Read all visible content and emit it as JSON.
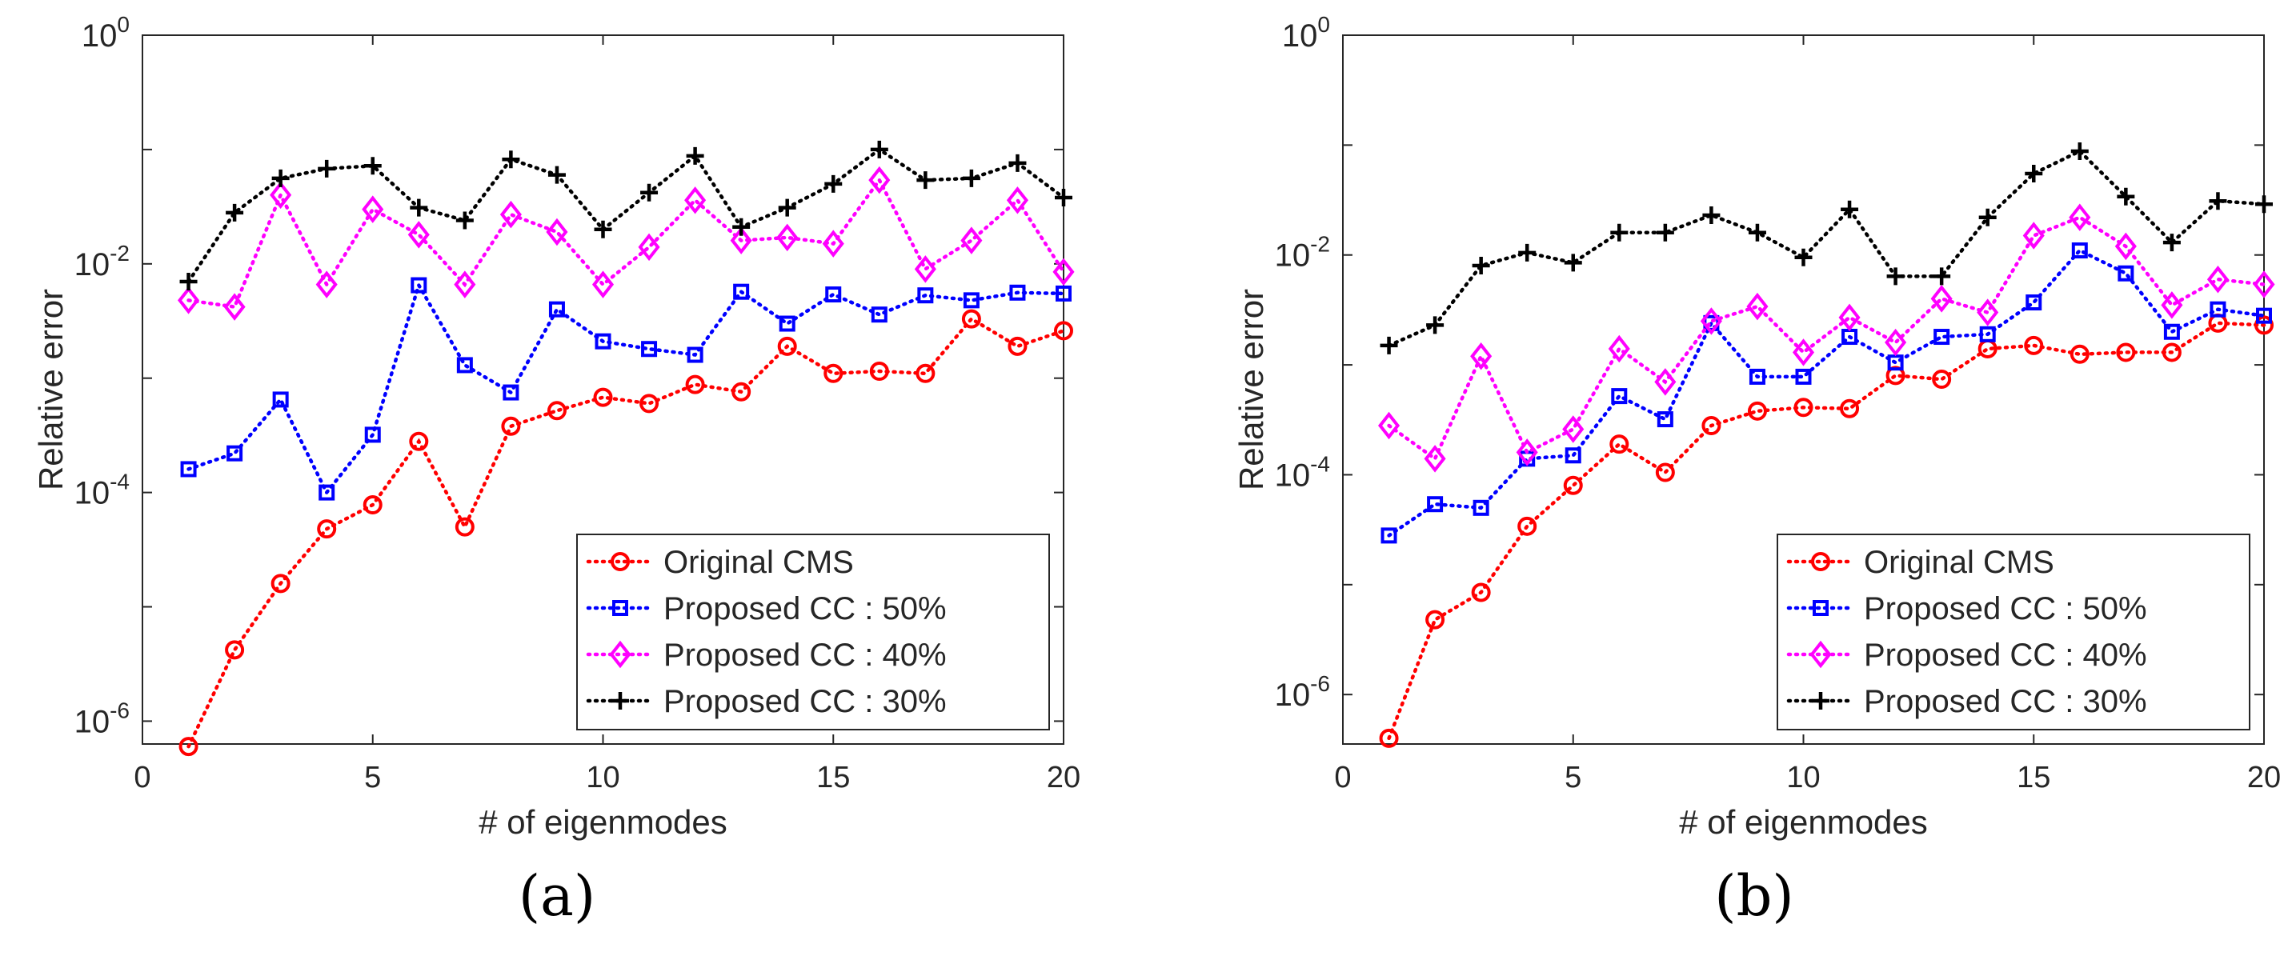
{
  "figure": {
    "panel_labels": [
      "(a)",
      "(b)"
    ]
  },
  "styles": {
    "Original CMS": {
      "color": "#ff0000",
      "marker": "circle"
    },
    "Proposed CC : 50%": {
      "color": "#0000ff",
      "marker": "square"
    },
    "Proposed CC : 40%": {
      "color": "#ff00ff",
      "marker": "diamond"
    },
    "Proposed CC : 30%": {
      "color": "#000000",
      "marker": "plus"
    }
  },
  "chart_data": [
    {
      "type": "line",
      "panel": "(a)",
      "title": "",
      "xlabel": "# of eigenmodes",
      "ylabel": "Relative error",
      "xlim": [
        0,
        20
      ],
      "ylim_log10": [
        -6.2,
        0
      ],
      "yscale": "log",
      "xticks": [
        0,
        5,
        10,
        15,
        20
      ],
      "yticks": [
        {
          "base": "10",
          "exp": "-6"
        },
        {
          "base": "10",
          "exp": "-4"
        },
        {
          "base": "10",
          "exp": "-2"
        },
        {
          "base": "10",
          "exp": "0"
        }
      ],
      "legend_position": "bottom-right",
      "x": [
        1,
        2,
        3,
        4,
        5,
        6,
        7,
        8,
        9,
        10,
        11,
        12,
        13,
        14,
        15,
        16,
        17,
        18,
        19,
        20
      ],
      "series": [
        {
          "name": "Original CMS",
          "values": [
            6e-07,
            4.2e-06,
            1.6e-05,
            4.8e-05,
            7.8e-05,
            0.00028,
            5e-05,
            0.00038,
            0.00052,
            0.00068,
            0.0006,
            0.00088,
            0.00076,
            0.0019,
            0.0011,
            0.00115,
            0.0011,
            0.0033,
            0.0019,
            0.0026
          ]
        },
        {
          "name": "Proposed CC : 50%",
          "values": [
            0.00016,
            0.00022,
            0.00065,
            0.0001,
            0.00032,
            0.0065,
            0.0013,
            0.00075,
            0.004,
            0.0021,
            0.0018,
            0.0016,
            0.0057,
            0.003,
            0.0054,
            0.0036,
            0.0053,
            0.0048,
            0.0056,
            0.0055
          ]
        },
        {
          "name": "Proposed CC : 40%",
          "values": [
            0.0048,
            0.0042,
            0.04,
            0.0066,
            0.03,
            0.018,
            0.0066,
            0.027,
            0.019,
            0.0066,
            0.014,
            0.036,
            0.016,
            0.017,
            0.015,
            0.054,
            0.009,
            0.016,
            0.036,
            0.0085
          ]
        },
        {
          "name": "Proposed CC : 30%",
          "values": [
            0.007,
            0.028,
            0.056,
            0.068,
            0.072,
            0.031,
            0.024,
            0.082,
            0.06,
            0.02,
            0.042,
            0.088,
            0.021,
            0.031,
            0.05,
            0.1,
            0.054,
            0.056,
            0.076,
            0.038
          ]
        }
      ]
    },
    {
      "type": "line",
      "panel": "(b)",
      "title": "",
      "xlabel": "# of eigenmodes",
      "ylabel": "Relative error",
      "xlim": [
        0,
        20
      ],
      "ylim_log10": [
        -6.45,
        0
      ],
      "yscale": "log",
      "xticks": [
        0,
        5,
        10,
        15,
        20
      ],
      "yticks": [
        {
          "base": "10",
          "exp": "-6"
        },
        {
          "base": "10",
          "exp": "-4"
        },
        {
          "base": "10",
          "exp": "-2"
        },
        {
          "base": "10",
          "exp": "0"
        }
      ],
      "legend_position": "bottom-right",
      "x": [
        1,
        2,
        3,
        4,
        5,
        6,
        7,
        8,
        9,
        10,
        11,
        12,
        13,
        14,
        15,
        16,
        17,
        18,
        19,
        20
      ],
      "series": [
        {
          "name": "Original CMS",
          "values": [
            4e-07,
            4.8e-06,
            8.5e-06,
            3.4e-05,
            8e-05,
            0.00019,
            0.000105,
            0.00028,
            0.00038,
            0.00041,
            0.0004,
            0.0008,
            0.00074,
            0.0014,
            0.0015,
            0.00125,
            0.0013,
            0.0013,
            0.0024,
            0.0023
          ]
        },
        {
          "name": "Proposed CC : 50%",
          "values": [
            2.8e-05,
            5.4e-05,
            5e-05,
            0.00014,
            0.00015,
            0.00052,
            0.00032,
            0.0024,
            0.00078,
            0.00078,
            0.0018,
            0.00105,
            0.0018,
            0.0019,
            0.0037,
            0.011,
            0.0068,
            0.002,
            0.0032,
            0.0028
          ]
        },
        {
          "name": "Proposed CC : 40%",
          "values": [
            0.00028,
            0.00014,
            0.0012,
            0.00016,
            0.00026,
            0.0014,
            0.0007,
            0.0025,
            0.0034,
            0.0013,
            0.0027,
            0.0016,
            0.004,
            0.003,
            0.015,
            0.022,
            0.012,
            0.0035,
            0.006,
            0.0054
          ]
        },
        {
          "name": "Proposed CC : 30%",
          "values": [
            0.0015,
            0.0023,
            0.008,
            0.0105,
            0.0085,
            0.016,
            0.016,
            0.023,
            0.016,
            0.0095,
            0.026,
            0.0064,
            0.0064,
            0.022,
            0.055,
            0.088,
            0.034,
            0.013,
            0.031,
            0.029
          ]
        }
      ]
    }
  ]
}
